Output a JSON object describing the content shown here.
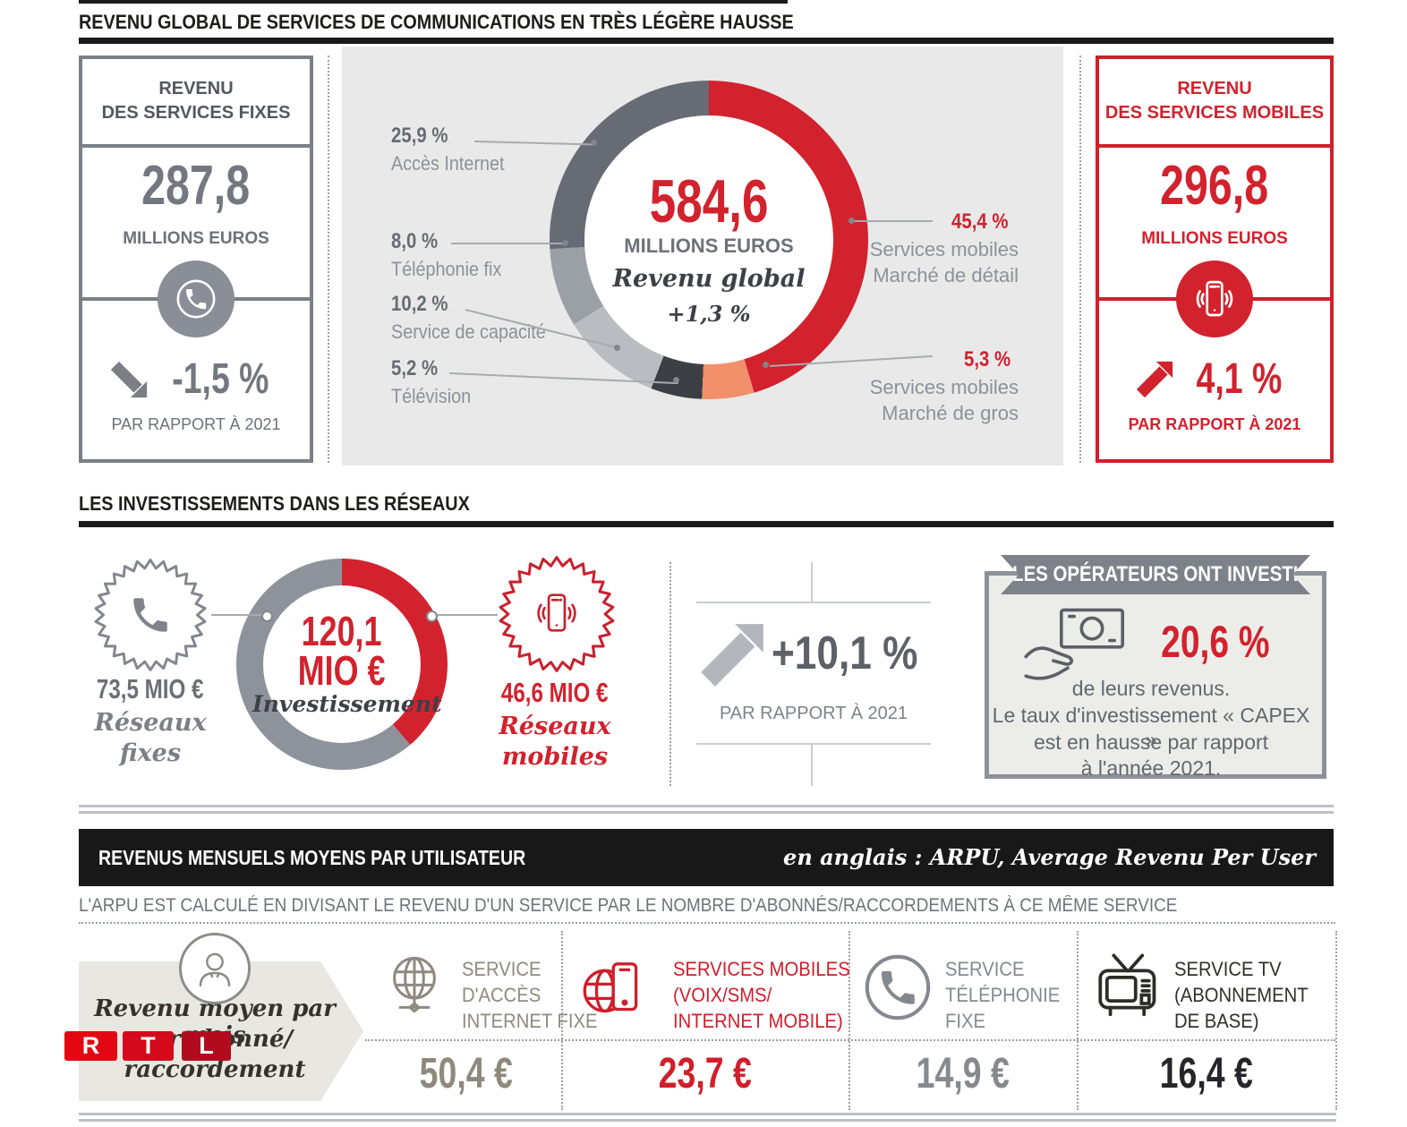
{
  "colors": {
    "red": "#d2222e",
    "salmon": "#f2906c",
    "charcoal": "#3b3e43",
    "light_gray": "#b9bcc1",
    "mid_gray": "#9ba0a7",
    "slate": "#666b74",
    "donut2_gray": "#8e939b",
    "border_gray": "#7b7f86",
    "panel_gray": "#e9e9e9",
    "taupe": "#8f897d",
    "black": "#1a1a1a"
  },
  "section1": {
    "title": "REVENU GLOBAL DE SERVICES DE COMMUNICATIONS EN TRÈS LÉGÈRE HAUSSE",
    "fixed_box": {
      "title_line1": "REVENU",
      "title_line2": "DES SERVICES FIXES",
      "value": "287,8",
      "unit": "MILLIONS EUROS",
      "change": "-1,5 %",
      "caption": "PAR RAPPORT À 2021"
    },
    "donut_center": {
      "value": "584,6",
      "unit": "MILLIONS EUROS",
      "label": "Revenu global",
      "change": "+1,3 %"
    },
    "labels_left": [
      {
        "pct": "25,9 %",
        "name": "Accès Internet"
      },
      {
        "pct": "8,0 %",
        "name": "Téléphonie fix"
      },
      {
        "pct": "10,2 %",
        "name": "Service de capacité"
      },
      {
        "pct": "5,2 %",
        "name": "Télévision"
      }
    ],
    "labels_right": [
      {
        "pct": "45,4 %",
        "name1": "Services mobiles",
        "name2": "Marché de détail"
      },
      {
        "pct": "5,3 %",
        "name1": "Services mobiles",
        "name2": "Marché de gros"
      }
    ],
    "mobile_box": {
      "title_line1": "REVENU",
      "title_line2": "DES SERVICES MOBILES",
      "value": "296,8",
      "unit": "MILLIONS EUROS",
      "change": "4,1 %",
      "caption": "PAR RAPPORT À 2021"
    }
  },
  "section2": {
    "title": "LES INVESTISSEMENTS DANS LES RÉSEAUX",
    "fixed_badge": {
      "value": "73,5 MIO €",
      "label_line1": "Réseaux",
      "label_line2": "fixes"
    },
    "donut_center": {
      "value": "120,1",
      "unit": "MIO €",
      "label": "Investissement"
    },
    "mobile_badge": {
      "value": "46,6 MIO €",
      "label_line1": "Réseaux",
      "label_line2": "mobiles"
    },
    "growth": {
      "change": "+10,1 %",
      "caption": "PAR RAPPORT À 2021"
    },
    "capex": {
      "ribbon": "LES OPÉRATEURS ONT INVESTI",
      "pct": "20,6 %",
      "line1": "de leurs revenus.",
      "line2": "Le taux d'investissement « CAPEX »",
      "line3": "est en hausse par rapport",
      "line4": "à l'année 2021."
    }
  },
  "section3": {
    "bar_title": "REVENUS MENSUELS MOYENS PAR UTILISATEUR",
    "bar_note": "en anglais : ARPU, Average Revenu Per User",
    "subtitle": "L'ARPU EST CALCULÉ EN DIVISANT LE REVENU D'UN SERVICE PAR LE NOMBRE D'ABONNÉS/RACCORDEMENTS À CE MÊME SERVICE",
    "row_label": {
      "line1": "Revenu moyen par mois",
      "line2": "par abonné/",
      "line3": "raccordement"
    },
    "rtl_logo": [
      "R",
      "T",
      "L"
    ],
    "columns": [
      {
        "label_lines": [
          "SERVICE",
          "D'ACCÈS",
          "INTERNET FIXE"
        ],
        "value": "50,4 €"
      },
      {
        "label_lines": [
          "SERVICES MOBILES",
          "(VOIX/SMS/",
          "INTERNET MOBILE)"
        ],
        "value": "23,7 €"
      },
      {
        "label_lines": [
          "SERVICE",
          "TÉLÉPHONIE",
          "FIXE"
        ],
        "value": "14,9 €"
      },
      {
        "label_lines": [
          "SERVICE TV",
          "(ABONNEMENT",
          "DE BASE)"
        ],
        "value": "16,4 €"
      }
    ]
  },
  "chart_data": [
    {
      "type": "pie",
      "title": "Revenu global de services de communications 2022",
      "center_value_mio_eur": 584.6,
      "change_pct": 1.3,
      "fixed_revenue_mio_eur": 287.8,
      "fixed_change_pct": -1.5,
      "mobile_revenue_mio_eur": 296.8,
      "mobile_change_pct": 4.1,
      "segments": [
        {
          "label": "Services mobiles Marché de détail",
          "pct": 45.4,
          "color": "#d2222e"
        },
        {
          "label": "Services mobiles Marché de gros",
          "pct": 5.3,
          "color": "#f2906c"
        },
        {
          "label": "Télévision",
          "pct": 5.2,
          "color": "#3b3e43"
        },
        {
          "label": "Service de capacité",
          "pct": 10.2,
          "color": "#b9bcc1"
        },
        {
          "label": "Téléphonie fix",
          "pct": 8.0,
          "color": "#9ba0a7"
        },
        {
          "label": "Accès Internet",
          "pct": 25.9,
          "color": "#666b74"
        }
      ]
    },
    {
      "type": "pie",
      "title": "Investissements dans les réseaux 2022",
      "center_value_mio_eur": 120.1,
      "change_pct": 10.1,
      "capex_rate_pct": 20.6,
      "segments": [
        {
          "label": "Réseaux mobiles",
          "value_mio_eur": 46.6,
          "pct": 38.8,
          "color": "#d2222e"
        },
        {
          "label": "Réseaux fixes",
          "value_mio_eur": 73.5,
          "pct": 61.2,
          "color": "#8e939b"
        }
      ]
    },
    {
      "type": "table",
      "title": "Revenus mensuels moyens par utilisateur (ARPU)",
      "categories": [
        "Service d'accès internet fixe",
        "Services mobiles (voix/SMS/internet mobile)",
        "Service téléphonie fixe",
        "Service TV (abonnement de base)"
      ],
      "values_eur": [
        50.4,
        23.7,
        14.9,
        16.4
      ]
    }
  ]
}
